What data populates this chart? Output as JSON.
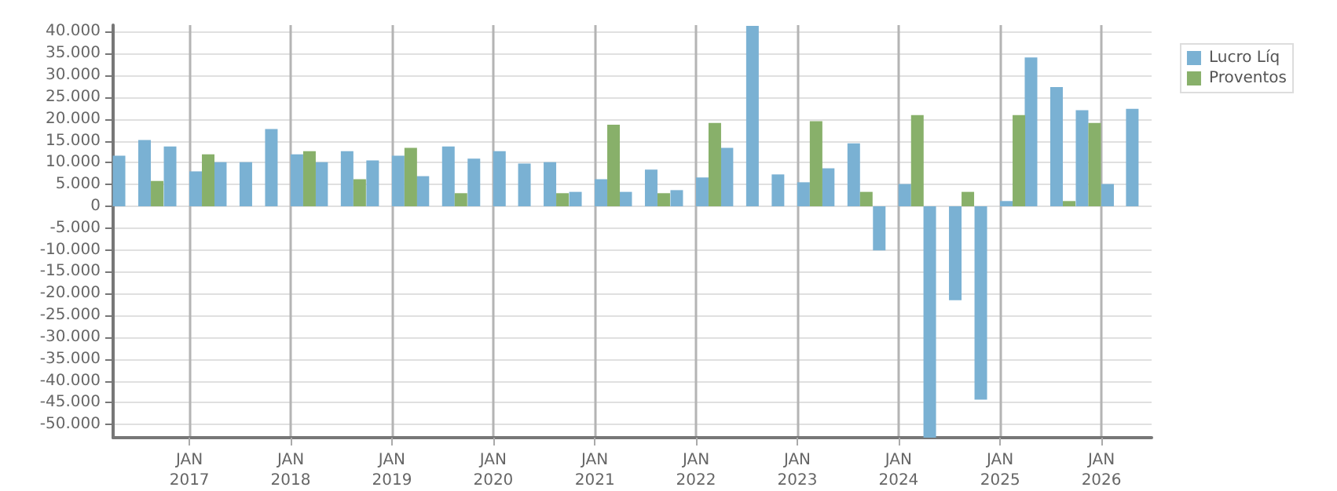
{
  "chart_data": {
    "type": "bar",
    "x": [
      "2016-05-15",
      "2016-08-15",
      "2016-11-15",
      "2017-02-15",
      "2017-05-15",
      "2017-08-15",
      "2017-11-15",
      "2018-02-15",
      "2018-05-15",
      "2018-08-15",
      "2018-11-15",
      "2019-02-15",
      "2019-05-15",
      "2019-08-15",
      "2019-11-15",
      "2020-02-15",
      "2020-05-15",
      "2020-08-15",
      "2020-11-15",
      "2021-02-15",
      "2021-05-15",
      "2021-08-15",
      "2021-11-15",
      "2022-02-15",
      "2022-05-15",
      "2022-08-15",
      "2022-11-15",
      "2023-02-15",
      "2023-05-15",
      "2023-08-15",
      "2023-11-15",
      "2024-02-15",
      "2024-05-15",
      "2024-08-15",
      "2024-11-15",
      "2025-02-15",
      "2025-05-15",
      "2025-08-15",
      "2025-11-15",
      "2026-02-15",
      "2026-05-15"
    ],
    "series": [
      {
        "name": "Lucro Líq",
        "color": "#7ab1d3",
        "values": [
          11600,
          15200,
          13700,
          8000,
          10100,
          10100,
          17700,
          11900,
          10100,
          12600,
          10500,
          11600,
          6900,
          13700,
          10900,
          12600,
          9800,
          10100,
          3300,
          6200,
          3300,
          8400,
          3700,
          6600,
          13400,
          41300,
          7300,
          5500,
          8700,
          14400,
          -10100,
          5100,
          -53000,
          -21500,
          -44300,
          1200,
          34100,
          27300,
          22000,
          5100,
          22300
        ]
      },
      {
        "name": "Proventos",
        "color": "#88b06a",
        "values": [
          0,
          5800,
          0,
          11900,
          0,
          0,
          0,
          12600,
          0,
          6200,
          0,
          13400,
          0,
          3000,
          0,
          0,
          0,
          3000,
          0,
          18700,
          0,
          3000,
          0,
          19100,
          0,
          0,
          0,
          19500,
          0,
          3300,
          0,
          20900,
          0,
          3300,
          0,
          20900,
          0,
          1200,
          19100,
          0,
          0
        ]
      }
    ],
    "xlim": [
      "2016-04",
      "2026-07"
    ],
    "xticks": [
      {
        "value": "2017-01",
        "label": "JAN\n2017"
      },
      {
        "value": "2018-01",
        "label": "JAN\n2018"
      },
      {
        "value": "2019-01",
        "label": "JAN\n2019"
      },
      {
        "value": "2020-01",
        "label": "JAN\n2020"
      },
      {
        "value": "2021-01",
        "label": "JAN\n2021"
      },
      {
        "value": "2022-01",
        "label": "JAN\n2022"
      },
      {
        "value": "2023-01",
        "label": "JAN\n2023"
      },
      {
        "value": "2024-01",
        "label": "JAN\n2024"
      },
      {
        "value": "2025-01",
        "label": "JAN\n2025"
      },
      {
        "value": "2026-01",
        "label": "JAN\n2026"
      }
    ],
    "ylim": [
      -53000,
      41500
    ],
    "yticks": [
      {
        "value": -50000,
        "label": "-50.000"
      },
      {
        "value": -45000,
        "label": "-45.000"
      },
      {
        "value": -40000,
        "label": "-40.000"
      },
      {
        "value": -35000,
        "label": "-35.000"
      },
      {
        "value": -30000,
        "label": "-30.000"
      },
      {
        "value": -25000,
        "label": "-25.000"
      },
      {
        "value": -20000,
        "label": "-20.000"
      },
      {
        "value": -15000,
        "label": "-15.000"
      },
      {
        "value": -10000,
        "label": "-10.000"
      },
      {
        "value": -5000,
        "label": "-5.000"
      },
      {
        "value": 0,
        "label": "0"
      },
      {
        "value": 5000,
        "label": "5.000"
      },
      {
        "value": 10000,
        "label": "10.000"
      },
      {
        "value": 15000,
        "label": "15.000"
      },
      {
        "value": 20000,
        "label": "20.000"
      },
      {
        "value": 25000,
        "label": "25.000"
      },
      {
        "value": 30000,
        "label": "30.000"
      },
      {
        "value": 35000,
        "label": "35.000"
      },
      {
        "value": 40000,
        "label": "40.000"
      }
    ],
    "grid": true,
    "legend": "top right"
  }
}
